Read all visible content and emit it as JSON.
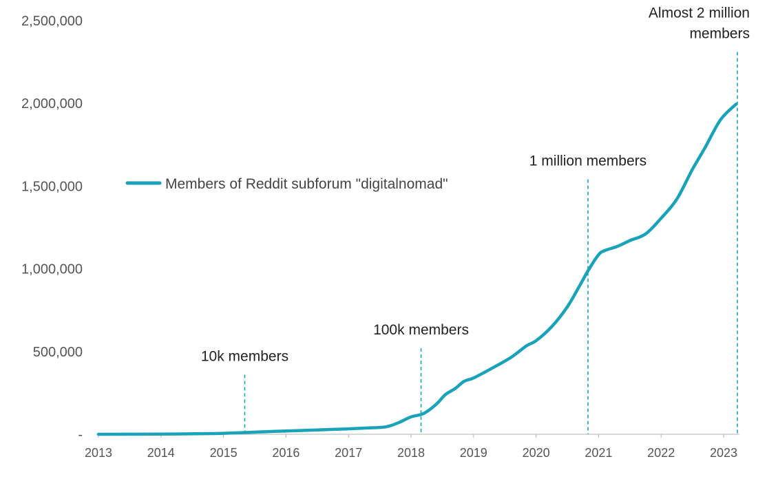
{
  "chart_data": {
    "type": "line",
    "title": "",
    "xlabel": "",
    "ylabel": "",
    "xlim": [
      2013,
      2023.25
    ],
    "ylim": [
      0,
      2500000
    ],
    "x_ticks": [
      "2013",
      "2014",
      "2015",
      "2016",
      "2017",
      "2018",
      "2019",
      "2020",
      "2021",
      "2022",
      "2023"
    ],
    "y_ticks": [
      {
        "value": 0,
        "label": "-"
      },
      {
        "value": 500000,
        "label": "500,000"
      },
      {
        "value": 1000000,
        "label": "1,000,000"
      },
      {
        "value": 1500000,
        "label": "1,500,000"
      },
      {
        "value": 2000000,
        "label": "2,000,000"
      },
      {
        "value": 2500000,
        "label": "2,500,000"
      }
    ],
    "grid": false,
    "legend_position": "upper-left",
    "series": [
      {
        "name": "Members of Reddit subforum \"digitalnomad\"",
        "color": "#1aa3b8",
        "points": [
          [
            2013.0,
            0
          ],
          [
            2014.0,
            1000
          ],
          [
            2014.8,
            4000
          ],
          [
            2015.0,
            6000
          ],
          [
            2015.3,
            10000
          ],
          [
            2015.5,
            13000
          ],
          [
            2016.0,
            20000
          ],
          [
            2016.5,
            26000
          ],
          [
            2017.0,
            33000
          ],
          [
            2017.3,
            38000
          ],
          [
            2017.6,
            45000
          ],
          [
            2017.8,
            70000
          ],
          [
            2018.0,
            105000
          ],
          [
            2018.2,
            125000
          ],
          [
            2018.4,
            180000
          ],
          [
            2018.55,
            240000
          ],
          [
            2018.7,
            275000
          ],
          [
            2018.85,
            320000
          ],
          [
            2019.0,
            340000
          ],
          [
            2019.3,
            400000
          ],
          [
            2019.6,
            465000
          ],
          [
            2019.85,
            535000
          ],
          [
            2020.0,
            565000
          ],
          [
            2020.25,
            650000
          ],
          [
            2020.5,
            770000
          ],
          [
            2020.7,
            900000
          ],
          [
            2020.85,
            1000000
          ],
          [
            2021.0,
            1085000
          ],
          [
            2021.1,
            1110000
          ],
          [
            2021.3,
            1135000
          ],
          [
            2021.5,
            1170000
          ],
          [
            2021.75,
            1210000
          ],
          [
            2022.0,
            1305000
          ],
          [
            2022.25,
            1420000
          ],
          [
            2022.5,
            1600000
          ],
          [
            2022.7,
            1730000
          ],
          [
            2022.95,
            1900000
          ],
          [
            2023.2,
            1995000
          ]
        ]
      }
    ],
    "markers": [
      {
        "x": 2015.34,
        "ymax": 360000,
        "label_lines": [
          "10k members"
        ],
        "label_anchor": "middle"
      },
      {
        "x": 2018.16,
        "ymax": 520000,
        "label_lines": [
          "100k members"
        ],
        "label_anchor": "middle"
      },
      {
        "x": 2020.83,
        "ymax": 1540000,
        "label_lines": [
          "1 million members"
        ],
        "label_anchor": "middle"
      },
      {
        "x": 2023.22,
        "ymax": 2310000,
        "label_lines": [
          "Almost 2 million",
          "members"
        ],
        "label_anchor": "end"
      }
    ]
  }
}
